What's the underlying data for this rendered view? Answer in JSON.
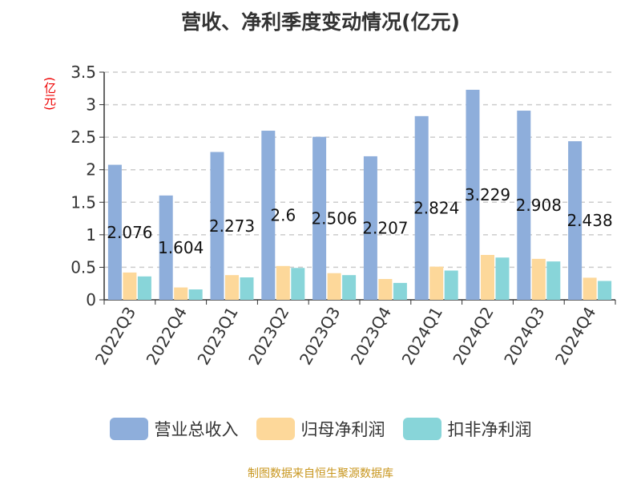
{
  "chart_data": {
    "type": "bar",
    "title": "营收、净利季度变动情况(亿元)",
    "ylabel": "(亿元)",
    "ylim": [
      0,
      3.5
    ],
    "yticks": [
      "0",
      "0.5",
      "1",
      "1.5",
      "2",
      "2.5",
      "3",
      "3.5"
    ],
    "grid": true,
    "legend_position": "bottom",
    "categories": [
      "2022Q3",
      "2022Q4",
      "2023Q1",
      "2023Q2",
      "2023Q3",
      "2023Q4",
      "2024Q1",
      "2024Q2",
      "2024Q3",
      "2024Q4"
    ],
    "series": [
      {
        "name": "营业总收入",
        "color": "#8eaedb",
        "values": [
          2.076,
          1.604,
          2.273,
          2.6,
          2.506,
          2.207,
          2.824,
          3.229,
          2.908,
          2.438
        ],
        "labels": [
          "2.076",
          "1.604",
          "2.273",
          "2.6",
          "2.506",
          "2.207",
          "2.824",
          "3.229",
          "2.908",
          "2.438"
        ]
      },
      {
        "name": "归母净利润",
        "color": "#fdd89a",
        "values": [
          0.42,
          0.19,
          0.38,
          0.52,
          0.41,
          0.32,
          0.51,
          0.69,
          0.63,
          0.34
        ]
      },
      {
        "name": "扣非净利润",
        "color": "#88d5d9",
        "values": [
          0.36,
          0.16,
          0.345,
          0.49,
          0.38,
          0.26,
          0.45,
          0.65,
          0.59,
          0.29
        ]
      }
    ]
  },
  "source": "制图数据来自恒生聚源数据库"
}
